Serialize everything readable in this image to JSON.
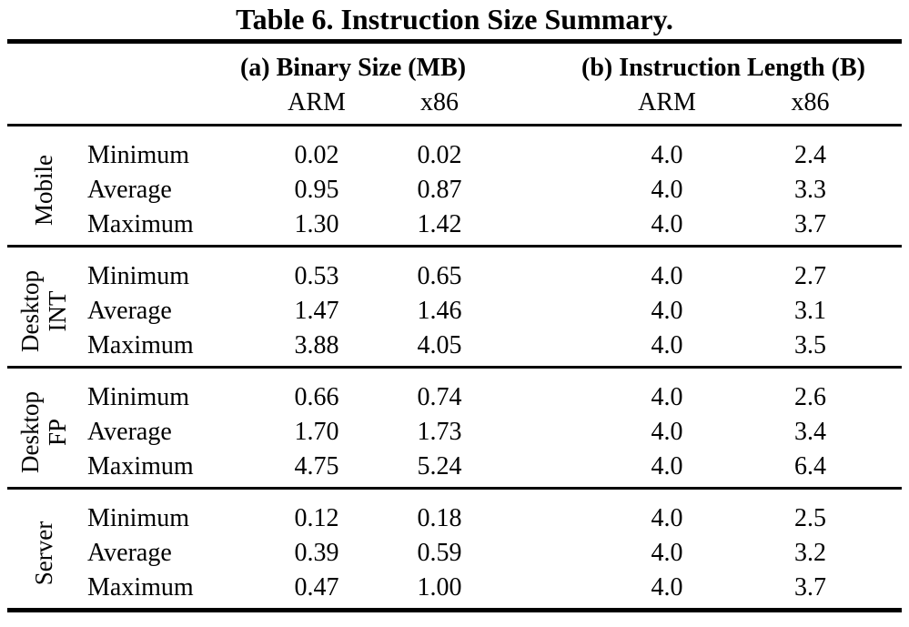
{
  "title": "Table 6. Instruction Size Summary.",
  "header": {
    "panel_a": "(a) Binary Size (MB)",
    "panel_b": "(b) Instruction Length (B)",
    "subcolumns_a": [
      "ARM",
      "x86"
    ],
    "subcolumns_b": [
      "ARM",
      "x86"
    ]
  },
  "sections": [
    {
      "group": "Mobile",
      "group_lines": [
        "Mobile"
      ],
      "rows": [
        {
          "label": "Minimum",
          "values": [
            "0.02",
            "0.02",
            "4.0",
            "2.4"
          ]
        },
        {
          "label": "Average",
          "values": [
            "0.95",
            "0.87",
            "4.0",
            "3.3"
          ]
        },
        {
          "label": "Maximum",
          "values": [
            "1.30",
            "1.42",
            "4.0",
            "3.7"
          ]
        }
      ]
    },
    {
      "group": "Desktop INT",
      "group_lines": [
        "Desktop",
        "INT"
      ],
      "rows": [
        {
          "label": "Minimum",
          "values": [
            "0.53",
            "0.65",
            "4.0",
            "2.7"
          ]
        },
        {
          "label": "Average",
          "values": [
            "1.47",
            "1.46",
            "4.0",
            "3.1"
          ]
        },
        {
          "label": "Maximum",
          "values": [
            "3.88",
            "4.05",
            "4.0",
            "3.5"
          ]
        }
      ]
    },
    {
      "group": "Desktop FP",
      "group_lines": [
        "Desktop",
        "FP"
      ],
      "rows": [
        {
          "label": "Minimum",
          "values": [
            "0.66",
            "0.74",
            "4.0",
            "2.6"
          ]
        },
        {
          "label": "Average",
          "values": [
            "1.70",
            "1.73",
            "4.0",
            "3.4"
          ]
        },
        {
          "label": "Maximum",
          "values": [
            "4.75",
            "5.24",
            "4.0",
            "6.4"
          ]
        }
      ]
    },
    {
      "group": "Server",
      "group_lines": [
        "Server"
      ],
      "rows": [
        {
          "label": "Minimum",
          "values": [
            "0.12",
            "0.18",
            "4.0",
            "2.5"
          ]
        },
        {
          "label": "Average",
          "values": [
            "0.39",
            "0.59",
            "4.0",
            "3.2"
          ]
        },
        {
          "label": "Maximum",
          "values": [
            "0.47",
            "1.00",
            "4.0",
            "3.7"
          ]
        }
      ]
    }
  ],
  "colors": {
    "text": "#000000",
    "rule": "#000000",
    "background": "#ffffff"
  }
}
